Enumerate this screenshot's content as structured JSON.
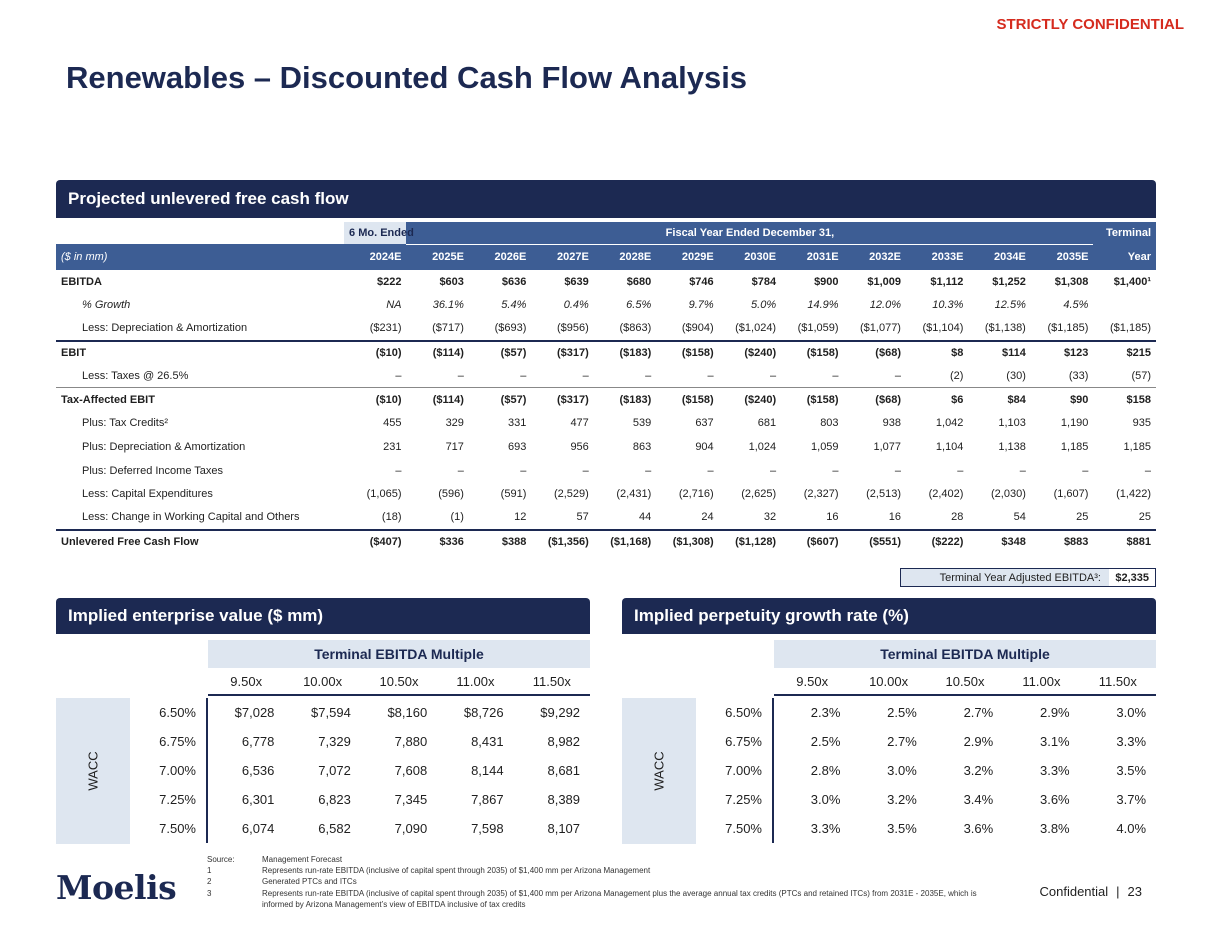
{
  "header": {
    "confidential": "STRICTLY CONFIDENTIAL",
    "title": "Renewables – Discounted Cash Flow Analysis"
  },
  "sections": {
    "ufcf_title": "Projected unlevered free cash flow",
    "ev_title": "Implied enterprise value ($ mm)",
    "pgr_title": "Implied perpetuity growth rate (%)"
  },
  "ufcf": {
    "six_mo_label": "6 Mo. Ended",
    "fy_label": "Fiscal Year Ended December 31,",
    "terminal_label": "Terminal",
    "units_label": "($ in mm)",
    "columns": [
      "2024E",
      "2025E",
      "2026E",
      "2027E",
      "2028E",
      "2029E",
      "2030E",
      "2031E",
      "2032E",
      "2033E",
      "2034E",
      "2035E",
      "Year"
    ],
    "rows": [
      {
        "label": "EBITDA",
        "style": "bold",
        "values": [
          "$222",
          "$603",
          "$636",
          "$639",
          "$680",
          "$746",
          "$784",
          "$900",
          "$1,009",
          "$1,112",
          "$1,252",
          "$1,308",
          "$1,400¹"
        ]
      },
      {
        "label": "% Growth",
        "style": "italic",
        "values": [
          "NA",
          "36.1%",
          "5.4%",
          "0.4%",
          "6.5%",
          "9.7%",
          "5.0%",
          "14.9%",
          "12.0%",
          "10.3%",
          "12.5%",
          "4.5%",
          ""
        ]
      },
      {
        "label": "Less: Depreciation & Amortization",
        "style": "indent",
        "values": [
          "($231)",
          "($717)",
          "($693)",
          "($956)",
          "($863)",
          "($904)",
          "($1,024)",
          "($1,059)",
          "($1,077)",
          "($1,104)",
          "($1,138)",
          "($1,185)",
          "($1,185)"
        ]
      },
      {
        "label": "EBIT",
        "style": "bold-top",
        "values": [
          "($10)",
          "($114)",
          "($57)",
          "($317)",
          "($183)",
          "($158)",
          "($240)",
          "($158)",
          "($68)",
          "$8",
          "$114",
          "$123",
          "$215"
        ]
      },
      {
        "label": "Less: Taxes @ 26.5%",
        "style": "indent-bot",
        "values": [
          "–",
          "–",
          "–",
          "–",
          "–",
          "–",
          "–",
          "–",
          "–",
          "(2)",
          "(30)",
          "(33)",
          "(57)"
        ]
      },
      {
        "label": "Tax-Affected EBIT",
        "style": "bold",
        "values": [
          "($10)",
          "($114)",
          "($57)",
          "($317)",
          "($183)",
          "($158)",
          "($240)",
          "($158)",
          "($68)",
          "$6",
          "$84",
          "$90",
          "$158"
        ]
      },
      {
        "label": "Plus: Tax Credits²",
        "style": "indent",
        "values": [
          "455",
          "329",
          "331",
          "477",
          "539",
          "637",
          "681",
          "803",
          "938",
          "1,042",
          "1,103",
          "1,190",
          "935"
        ]
      },
      {
        "label": "Plus: Depreciation & Amortization",
        "style": "indent",
        "values": [
          "231",
          "717",
          "693",
          "956",
          "863",
          "904",
          "1,024",
          "1,059",
          "1,077",
          "1,104",
          "1,138",
          "1,185",
          "1,185"
        ]
      },
      {
        "label": "Plus: Deferred Income Taxes",
        "style": "indent",
        "values": [
          "–",
          "–",
          "–",
          "–",
          "–",
          "–",
          "–",
          "–",
          "–",
          "–",
          "–",
          "–",
          "–"
        ]
      },
      {
        "label": "Less: Capital Expenditures",
        "style": "indent",
        "values": [
          "(1,065)",
          "(596)",
          "(591)",
          "(2,529)",
          "(2,431)",
          "(2,716)",
          "(2,625)",
          "(2,327)",
          "(2,513)",
          "(2,402)",
          "(2,030)",
          "(1,607)",
          "(1,422)"
        ]
      },
      {
        "label": "Less: Change in Working Capital and Others",
        "style": "indent-bot",
        "values": [
          "(18)",
          "(1)",
          "12",
          "57",
          "44",
          "24",
          "32",
          "16",
          "16",
          "28",
          "54",
          "25",
          "25"
        ]
      },
      {
        "label": "Unlevered Free Cash Flow",
        "style": "bold-final",
        "values": [
          "($407)",
          "$336",
          "$388",
          "($1,356)",
          "($1,168)",
          "($1,308)",
          "($1,128)",
          "($607)",
          "($551)",
          "($222)",
          "$348",
          "$883",
          "$881"
        ]
      }
    ],
    "terminal_adj_label": "Terminal Year Adjusted EBITDA³:",
    "terminal_adj_value": "$2,335"
  },
  "ev_table": {
    "multiple_header": "Terminal EBITDA Multiple",
    "wacc_label": "WACC",
    "multiples": [
      "9.50x",
      "10.00x",
      "10.50x",
      "11.00x",
      "11.50x"
    ],
    "rows": [
      {
        "wacc": "6.50%",
        "values": [
          "$7,028",
          "$7,594",
          "$8,160",
          "$8,726",
          "$9,292"
        ]
      },
      {
        "wacc": "6.75%",
        "values": [
          "6,778",
          "7,329",
          "7,880",
          "8,431",
          "8,982"
        ]
      },
      {
        "wacc": "7.00%",
        "values": [
          "6,536",
          "7,072",
          "7,608",
          "8,144",
          "8,681"
        ]
      },
      {
        "wacc": "7.25%",
        "values": [
          "6,301",
          "6,823",
          "7,345",
          "7,867",
          "8,389"
        ]
      },
      {
        "wacc": "7.50%",
        "values": [
          "6,074",
          "6,582",
          "7,090",
          "7,598",
          "8,107"
        ]
      }
    ]
  },
  "pgr_table": {
    "multiple_header": "Terminal EBITDA Multiple",
    "wacc_label": "WACC",
    "multiples": [
      "9.50x",
      "10.00x",
      "10.50x",
      "11.00x",
      "11.50x"
    ],
    "rows": [
      {
        "wacc": "6.50%",
        "values": [
          "2.3%",
          "2.5%",
          "2.7%",
          "2.9%",
          "3.0%"
        ]
      },
      {
        "wacc": "6.75%",
        "values": [
          "2.5%",
          "2.7%",
          "2.9%",
          "3.1%",
          "3.3%"
        ]
      },
      {
        "wacc": "7.00%",
        "values": [
          "2.8%",
          "3.0%",
          "3.2%",
          "3.3%",
          "3.5%"
        ]
      },
      {
        "wacc": "7.25%",
        "values": [
          "3.0%",
          "3.2%",
          "3.4%",
          "3.6%",
          "3.7%"
        ]
      },
      {
        "wacc": "7.50%",
        "values": [
          "3.3%",
          "3.5%",
          "3.6%",
          "3.8%",
          "4.0%"
        ]
      }
    ]
  },
  "footnotes": [
    {
      "key": "Source:",
      "text": "Management Forecast"
    },
    {
      "key": "1",
      "text": "Represents run-rate EBITDA (inclusive of capital spent through 2035) of $1,400 mm per Arizona Management"
    },
    {
      "key": "2",
      "text": "Generated PTCs and ITCs"
    },
    {
      "key": "3",
      "text": "Represents run-rate EBITDA (inclusive of capital spent through 2035) of $1,400 mm per Arizona Management plus the average annual tax credits (PTCs and retained ITCs) from 2031E - 2035E, which is informed by Arizona Management’s view of EBITDA inclusive of tax credits"
    }
  ],
  "footer": {
    "logo": "Moelis",
    "confidential": "Confidential",
    "separator": "|",
    "page_number": "23"
  }
}
